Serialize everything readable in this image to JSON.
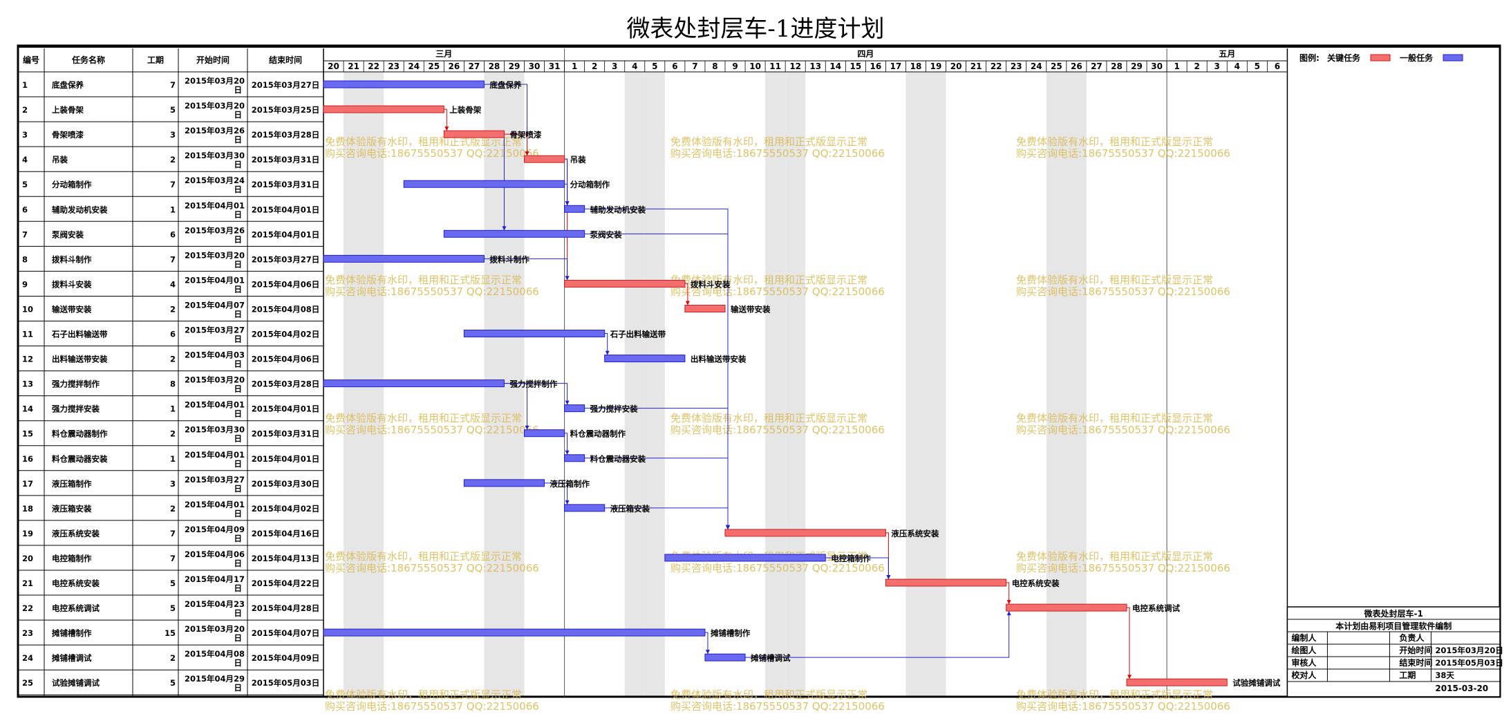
{
  "chart_data": {
    "type": "gantt",
    "title": "微表处封层车-1进度计划",
    "columns": [
      "编号",
      "任务名称",
      "工期",
      "开始时间",
      "结束时间"
    ],
    "timeline_start": "2015-03-20",
    "timeline_end": "2015-05-06",
    "months": [
      {
        "label": "三月",
        "start": "2015-03-20",
        "end": "2015-03-31"
      },
      {
        "label": "四月",
        "start": "2015-04-01",
        "end": "2015-04-30"
      },
      {
        "label": "五月",
        "start": "2015-05-01",
        "end": "2015-05-06"
      }
    ],
    "days": [
      "20",
      "21",
      "22",
      "23",
      "24",
      "25",
      "26",
      "27",
      "28",
      "29",
      "30",
      "31",
      "1",
      "2",
      "3",
      "4",
      "5",
      "6",
      "7",
      "8",
      "9",
      "10",
      "11",
      "12",
      "13",
      "14",
      "15",
      "16",
      "17",
      "18",
      "19",
      "20",
      "21",
      "22",
      "23",
      "24",
      "25",
      "26",
      "27",
      "28",
      "29",
      "30",
      "1",
      "2",
      "3",
      "4",
      "5",
      "6"
    ],
    "weekend_days": [
      "2015-03-21",
      "2015-03-22",
      "2015-03-28",
      "2015-03-29",
      "2015-04-04",
      "2015-04-05",
      "2015-04-11",
      "2015-04-12",
      "2015-04-18",
      "2015-04-19",
      "2015-04-25",
      "2015-04-26"
    ],
    "legend": {
      "prefix": "图例:",
      "critical_label": "关键任务",
      "normal_label": "一般任务",
      "critical_color": "#f46e6e",
      "normal_color": "#6a6af0"
    },
    "tasks": [
      {
        "id": "1",
        "name": "底盘保养",
        "duration": "7",
        "start_text": "2015年03月20日",
        "end_text": "2015年03月27日",
        "start": "2015-03-20",
        "end": "2015-03-27",
        "critical": false
      },
      {
        "id": "2",
        "name": "上装骨架",
        "duration": "5",
        "start_text": "2015年03月20日",
        "end_text": "2015年03月25日",
        "start": "2015-03-20",
        "end": "2015-03-25",
        "critical": true
      },
      {
        "id": "3",
        "name": "骨架喷漆",
        "duration": "3",
        "start_text": "2015年03月26日",
        "end_text": "2015年03月28日",
        "start": "2015-03-26",
        "end": "2015-03-28",
        "critical": true
      },
      {
        "id": "4",
        "name": "吊装",
        "duration": "2",
        "start_text": "2015年03月30日",
        "end_text": "2015年03月31日",
        "start": "2015-03-30",
        "end": "2015-03-31",
        "critical": true
      },
      {
        "id": "5",
        "name": "分动箱制作",
        "duration": "7",
        "start_text": "2015年03月24日",
        "end_text": "2015年03月31日",
        "start": "2015-03-24",
        "end": "2015-03-31",
        "critical": false
      },
      {
        "id": "6",
        "name": "辅助发动机安装",
        "duration": "1",
        "start_text": "2015年04月01日",
        "end_text": "2015年04月01日",
        "start": "2015-04-01",
        "end": "2015-04-01",
        "critical": false
      },
      {
        "id": "7",
        "name": "泵阀安装",
        "duration": "6",
        "start_text": "2015年03月26日",
        "end_text": "2015年04月01日",
        "start": "2015-03-26",
        "end": "2015-04-01",
        "critical": false
      },
      {
        "id": "8",
        "name": "拨料斗制作",
        "duration": "7",
        "start_text": "2015年03月20日",
        "end_text": "2015年03月27日",
        "start": "2015-03-20",
        "end": "2015-03-27",
        "critical": false
      },
      {
        "id": "9",
        "name": "拨料斗安装",
        "duration": "4",
        "start_text": "2015年04月01日",
        "end_text": "2015年04月06日",
        "start": "2015-04-01",
        "end": "2015-04-06",
        "critical": true
      },
      {
        "id": "10",
        "name": "输送带安装",
        "duration": "2",
        "start_text": "2015年04月07日",
        "end_text": "2015年04月08日",
        "start": "2015-04-07",
        "end": "2015-04-08",
        "critical": true
      },
      {
        "id": "11",
        "name": "石子出料输送带",
        "duration": "6",
        "start_text": "2015年03月27日",
        "end_text": "2015年04月02日",
        "start": "2015-03-27",
        "end": "2015-04-02",
        "critical": false
      },
      {
        "id": "12",
        "name": "出料输送带安装",
        "duration": "2",
        "start_text": "2015年04月03日",
        "end_text": "2015年04月06日",
        "start": "2015-04-03",
        "end": "2015-04-06",
        "critical": false
      },
      {
        "id": "13",
        "name": "强力搅拌制作",
        "duration": "8",
        "start_text": "2015年03月20日",
        "end_text": "2015年03月28日",
        "start": "2015-03-20",
        "end": "2015-03-28",
        "critical": false
      },
      {
        "id": "14",
        "name": "强力搅拌安装",
        "duration": "1",
        "start_text": "2015年04月01日",
        "end_text": "2015年04月01日",
        "start": "2015-04-01",
        "end": "2015-04-01",
        "critical": false
      },
      {
        "id": "15",
        "name": "料仓震动器制作",
        "duration": "2",
        "start_text": "2015年03月30日",
        "end_text": "2015年03月31日",
        "start": "2015-03-30",
        "end": "2015-03-31",
        "critical": false
      },
      {
        "id": "16",
        "name": "料仓震动器安装",
        "duration": "1",
        "start_text": "2015年04月01日",
        "end_text": "2015年04月01日",
        "start": "2015-04-01",
        "end": "2015-04-01",
        "critical": false
      },
      {
        "id": "17",
        "name": "液压箱制作",
        "duration": "3",
        "start_text": "2015年03月27日",
        "end_text": "2015年03月30日",
        "start": "2015-03-27",
        "end": "2015-03-30",
        "critical": false
      },
      {
        "id": "18",
        "name": "液压箱安装",
        "duration": "2",
        "start_text": "2015年04月01日",
        "end_text": "2015年04月02日",
        "start": "2015-04-01",
        "end": "2015-04-02",
        "critical": false
      },
      {
        "id": "19",
        "name": "液压系统安装",
        "duration": "7",
        "start_text": "2015年04月09日",
        "end_text": "2015年04月16日",
        "start": "2015-04-09",
        "end": "2015-04-16",
        "critical": true
      },
      {
        "id": "20",
        "name": "电控箱制作",
        "duration": "7",
        "start_text": "2015年04月06日",
        "end_text": "2015年04月13日",
        "start": "2015-04-06",
        "end": "2015-04-13",
        "critical": false
      },
      {
        "id": "21",
        "name": "电控系统安装",
        "duration": "5",
        "start_text": "2015年04月17日",
        "end_text": "2015年04月22日",
        "start": "2015-04-17",
        "end": "2015-04-22",
        "critical": true
      },
      {
        "id": "22",
        "name": "电控系统调试",
        "duration": "5",
        "start_text": "2015年04月23日",
        "end_text": "2015年04月28日",
        "start": "2015-04-23",
        "end": "2015-04-28",
        "critical": true
      },
      {
        "id": "23",
        "name": "摊铺槽制作",
        "duration": "15",
        "start_text": "2015年03月20日",
        "end_text": "2015年04月07日",
        "start": "2015-03-20",
        "end": "2015-04-07",
        "critical": false
      },
      {
        "id": "24",
        "name": "摊铺槽调试",
        "duration": "2",
        "start_text": "2015年04月08日",
        "end_text": "2015年04月09日",
        "start": "2015-04-08",
        "end": "2015-04-09",
        "critical": false
      },
      {
        "id": "25",
        "name": "试验摊铺调试",
        "duration": "5",
        "start_text": "2015年04月29日",
        "end_text": "2015年05月03日",
        "start": "2015-04-29",
        "end": "2015-05-03",
        "critical": true
      }
    ],
    "links": [
      [
        1,
        4
      ],
      [
        2,
        3
      ],
      [
        3,
        4
      ],
      [
        3,
        7
      ],
      [
        4,
        9
      ],
      [
        4,
        6
      ],
      [
        5,
        6
      ],
      [
        8,
        9
      ],
      [
        9,
        10
      ],
      [
        11,
        12
      ],
      [
        13,
        14
      ],
      [
        13,
        15
      ],
      [
        15,
        16
      ],
      [
        17,
        18
      ],
      [
        6,
        19
      ],
      [
        7,
        19
      ],
      [
        14,
        19
      ],
      [
        16,
        19
      ],
      [
        18,
        19
      ],
      [
        19,
        21
      ],
      [
        20,
        21
      ],
      [
        21,
        22
      ],
      [
        23,
        24
      ],
      [
        24,
        22
      ],
      [
        22,
        25
      ]
    ],
    "watermark": [
      "免费体验版有水印，租用和正式版显示正常",
      "购买咨询电话:18675550537 QQ:22150066"
    ],
    "info_box": {
      "title": "微表处封层车-1",
      "subtitle": "本计划由易利项目管理软件编制",
      "rows": [
        {
          "label": "编制人",
          "value": "",
          "label2": "负责人",
          "value2": ""
        },
        {
          "label": "绘图人",
          "value": "",
          "label2": "开始时间",
          "value2": "2015年03月20日"
        },
        {
          "label": "审核人",
          "value": "",
          "label2": "结束时间",
          "value2": "2015年05月03日"
        },
        {
          "label": "校对人",
          "value": "",
          "label2": "工期",
          "value2": "38天"
        }
      ],
      "date": "2015-03-20"
    }
  }
}
